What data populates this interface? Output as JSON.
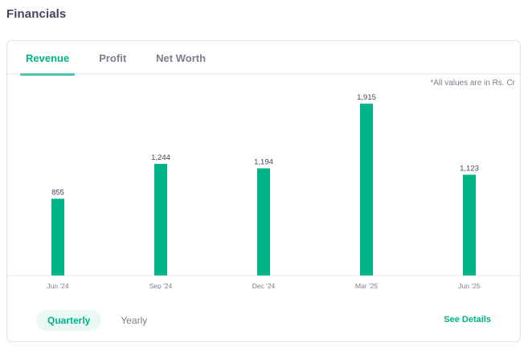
{
  "header": {
    "title": "Financials"
  },
  "tabs": [
    {
      "label": "Revenue",
      "active": true
    },
    {
      "label": "Profit",
      "active": false
    },
    {
      "label": "Net Worth",
      "active": false
    }
  ],
  "note": "*All values are in Rs. Cr",
  "chart_data": {
    "type": "bar",
    "categories": [
      "Jun '24",
      "Sep '24",
      "Dec '24",
      "Mar '25",
      "Jun '25"
    ],
    "values": [
      855,
      1244,
      1194,
      1915,
      1123
    ],
    "value_labels": [
      "855",
      "1,244",
      "1,194",
      "1,915",
      "1,123"
    ],
    "title": "",
    "xlabel": "",
    "ylabel": "",
    "ylim": [
      0,
      1915
    ],
    "grid": false,
    "bar_color": "#00b386"
  },
  "period_toggle": {
    "options": [
      {
        "label": "Quarterly",
        "active": true
      },
      {
        "label": "Yearly",
        "active": false
      }
    ]
  },
  "see_details_label": "See Details",
  "colors": {
    "accent": "#00b386",
    "accent_bg": "#ebf9f5",
    "text_primary": "#44475b",
    "text_secondary": "#7c7e8c",
    "border": "#e3e4e8"
  }
}
